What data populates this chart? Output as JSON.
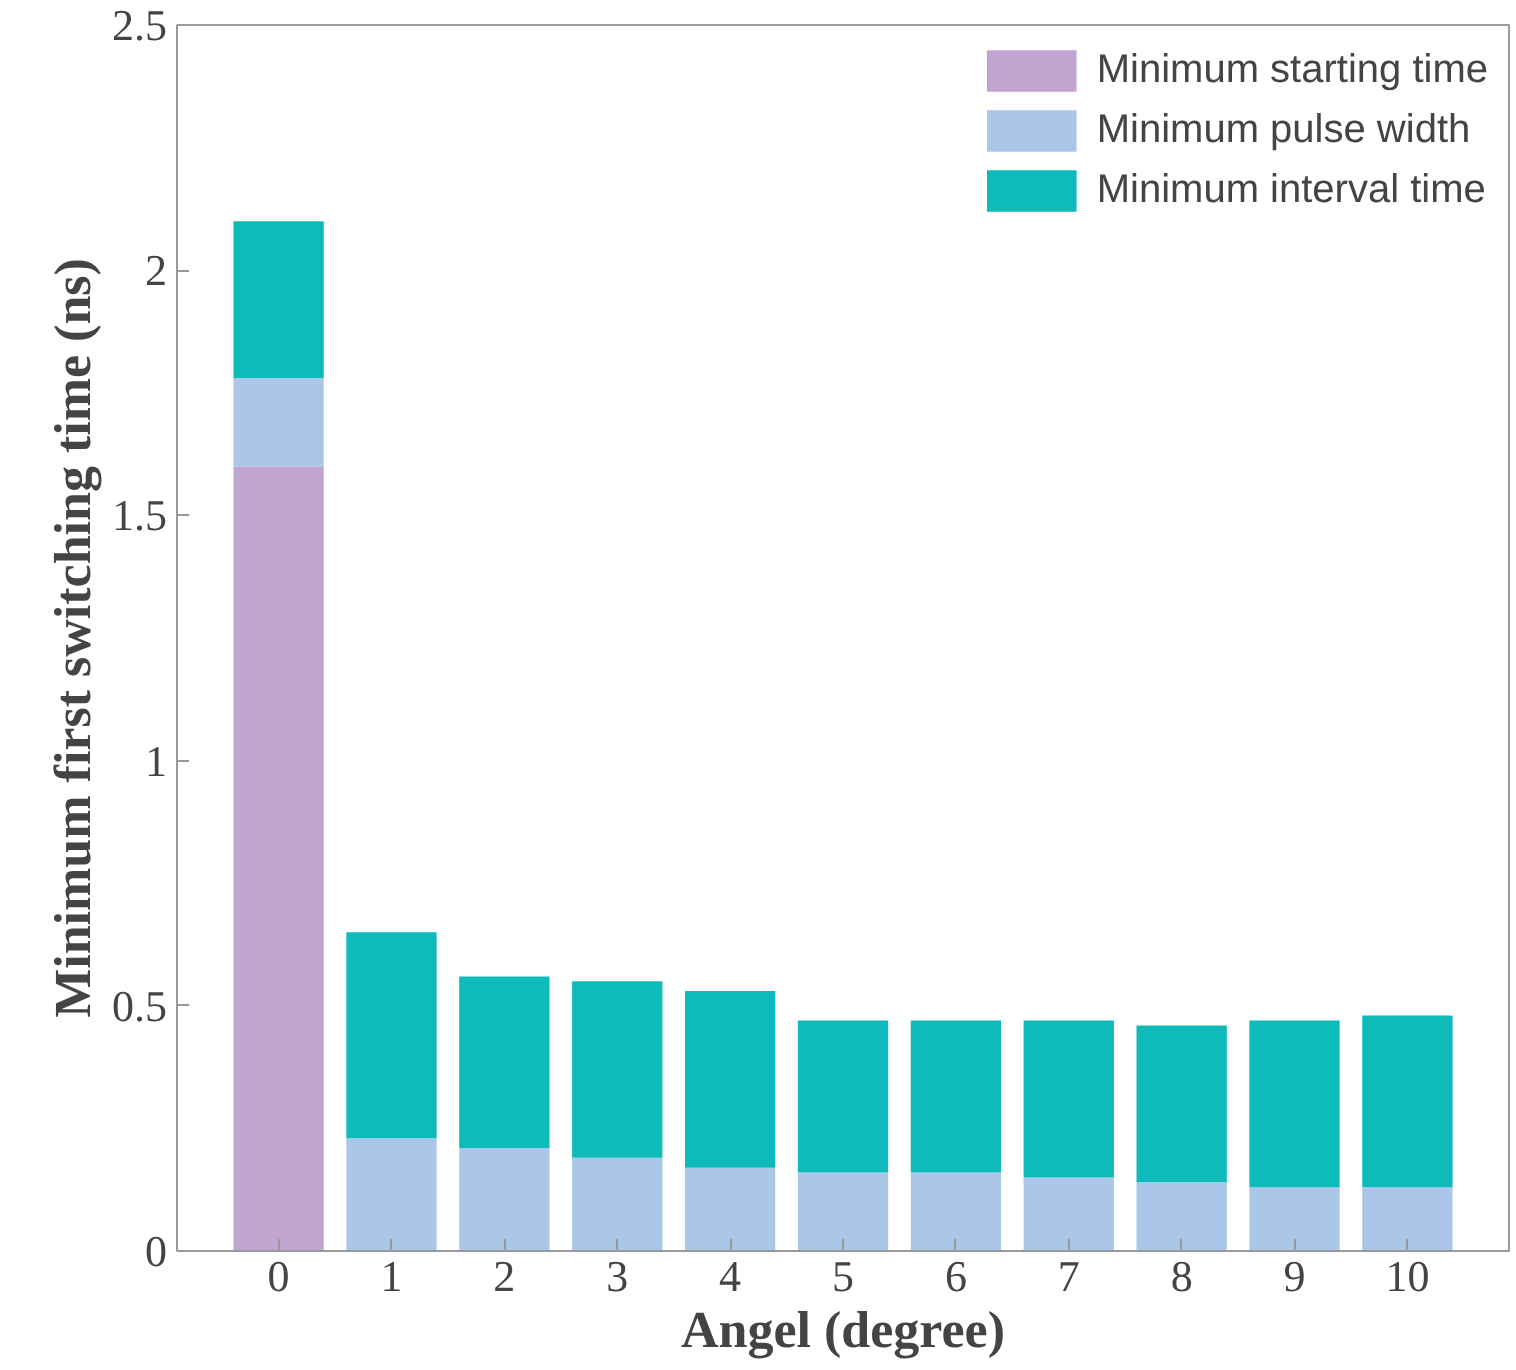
{
  "chart_data": {
    "type": "bar",
    "stacked": true,
    "xlabel": "Angel (degree)",
    "ylabel": "Minimum first switching time (ns)",
    "categories": [
      "0",
      "1",
      "2",
      "3",
      "4",
      "5",
      "6",
      "7",
      "8",
      "9",
      "10"
    ],
    "series": [
      {
        "name": "Minimum starting time",
        "color": "#c0a5d0",
        "values": [
          1.6,
          0,
          0,
          0,
          0,
          0,
          0,
          0,
          0,
          0,
          0
        ]
      },
      {
        "name": "Minimum pulse width",
        "color": "#aac7ea",
        "values": [
          0.18,
          0.23,
          0.21,
          0.19,
          0.17,
          0.16,
          0.16,
          0.15,
          0.14,
          0.13,
          0.13
        ]
      },
      {
        "name": "Minimum interval time",
        "color": "#0fbbba",
        "values": [
          0.32,
          0.42,
          0.35,
          0.36,
          0.36,
          0.31,
          0.31,
          0.32,
          0.32,
          0.34,
          0.35
        ]
      }
    ],
    "ylim": [
      0,
      2.5
    ],
    "yticks": [
      0,
      0.5,
      1,
      1.5,
      2,
      2.5
    ],
    "grid": false,
    "legend": "top right"
  }
}
